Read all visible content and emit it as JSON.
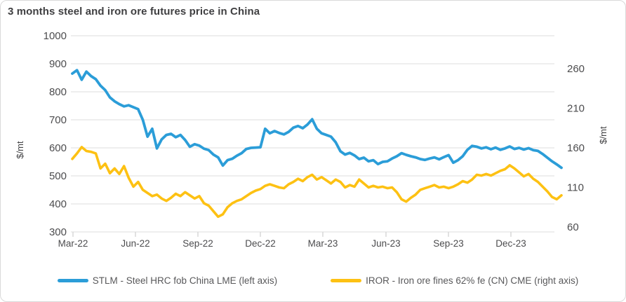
{
  "card": {
    "title": "3 months steel and iron ore futures price in China"
  },
  "chart_data": {
    "type": "line",
    "title": "3 months steel and iron ore futures price in China",
    "grid": "horizontal-only",
    "legend_position": "bottom",
    "x_ticks": [
      "Mar-22",
      "Jun-22",
      "Sep-22",
      "Dec-22",
      "Mar-23",
      "Jun-23",
      "Sep-23",
      "Dec-23"
    ],
    "x_note": "approximately weekly samples, Mar-2022 through mid-Feb-2024",
    "left_axis": {
      "label": "$/mt",
      "min": 300,
      "max": 1000,
      "ticks": [
        1000,
        900,
        800,
        700,
        600,
        500,
        400,
        300
      ]
    },
    "right_axis": {
      "label": "$/mt",
      "min": 60,
      "max": 260,
      "ticks": [
        260,
        210,
        160,
        110,
        60
      ]
    },
    "series": [
      {
        "id": "STLM",
        "name": "STLM - Steel HRC fob China LME (left axis)",
        "axis": "left",
        "color": "#2b9dd8",
        "values": [
          865,
          877,
          843,
          872,
          856,
          845,
          822,
          806,
          780,
          766,
          756,
          748,
          752,
          745,
          738,
          700,
          640,
          668,
          598,
          630,
          646,
          650,
          638,
          646,
          628,
          604,
          613,
          608,
          597,
          592,
          576,
          566,
          537,
          556,
          561,
          572,
          581,
          596,
          600,
          601,
          602,
          668,
          652,
          660,
          653,
          648,
          657,
          672,
          678,
          670,
          683,
          702,
          668,
          652,
          646,
          640,
          620,
          588,
          576,
          582,
          573,
          560,
          565,
          552,
          556,
          542,
          550,
          552,
          562,
          570,
          581,
          575,
          570,
          566,
          560,
          557,
          562,
          566,
          559,
          567,
          574,
          547,
          556,
          570,
          593,
          607,
          604,
          598,
          602,
          595,
          601,
          593,
          598,
          605,
          596,
          600,
          594,
          599,
          592,
          589,
          578,
          565,
          552,
          541,
          529
        ]
      },
      {
        "id": "IROR",
        "name": "IROR - Iron ore fines 62% fe (CN) CME (right axis)",
        "axis": "right",
        "color": "#fdc113",
        "values": [
          146,
          153,
          161,
          156,
          155,
          153,
          134,
          140,
          128,
          134,
          127,
          137,
          122,
          111,
          117,
          107,
          103,
          99,
          101,
          96,
          93,
          97,
          102,
          99,
          104,
          100,
          96,
          99,
          90,
          87,
          80,
          73,
          76,
          85,
          90,
          93,
          95,
          99,
          103,
          106,
          108,
          112,
          114,
          112,
          110,
          109,
          114,
          117,
          121,
          118,
          123,
          126,
          120,
          123,
          119,
          115,
          120,
          117,
          110,
          113,
          111,
          120,
          115,
          110,
          112,
          110,
          111,
          109,
          110,
          104,
          95,
          92,
          97,
          101,
          107,
          109,
          111,
          113,
          110,
          111,
          109,
          111,
          114,
          118,
          116,
          120,
          126,
          125,
          127,
          125,
          128,
          131,
          133,
          138,
          134,
          129,
          124,
          127,
          121,
          117,
          111,
          105,
          98,
          95,
          100
        ]
      }
    ]
  }
}
